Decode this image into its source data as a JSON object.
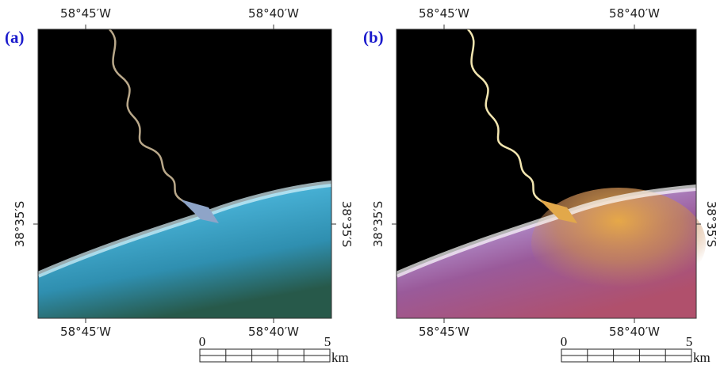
{
  "panels": [
    {
      "label": "(a)",
      "top_labels": [
        "58°45′W",
        "58°40′W"
      ],
      "bottom_labels": [
        "58°45′W",
        "58°40′W"
      ],
      "left_label": "38°35′S",
      "right_label": "38°35′S",
      "scale": {
        "start": "0",
        "end": "5",
        "unit": "km"
      }
    },
    {
      "label": "(b)",
      "top_labels": [
        "58°45′W",
        "58°40′W"
      ],
      "bottom_labels": [
        "58°45′W",
        "58°40′W"
      ],
      "left_label": "38°35′S",
      "right_label": "38°35′S",
      "scale": {
        "start": "0",
        "end": "5",
        "unit": "km"
      }
    }
  ]
}
